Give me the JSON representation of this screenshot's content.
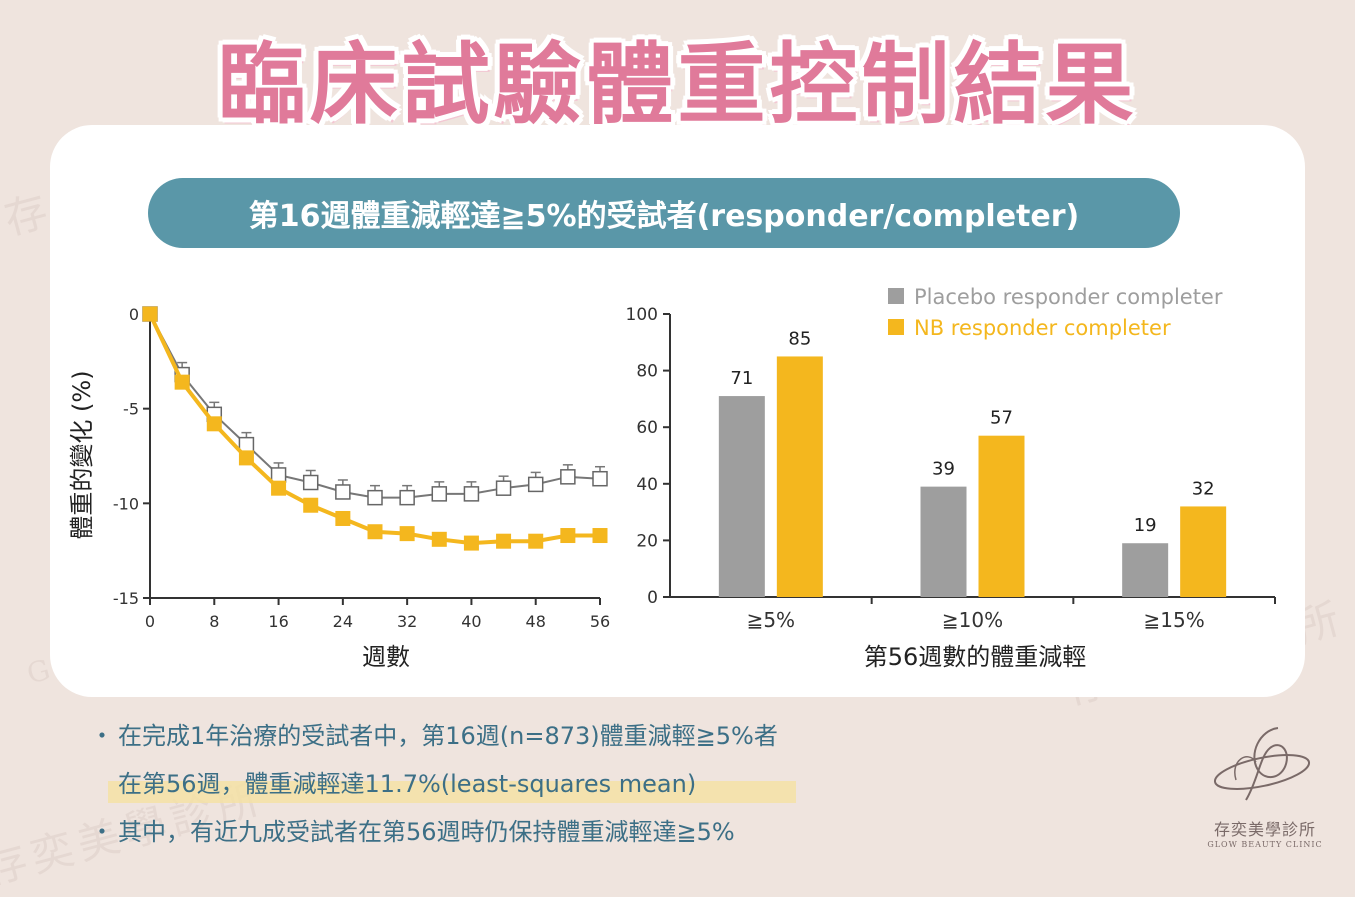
{
  "title": "臨床試驗體重控制結果",
  "subtitle": "第16週體重減輕達≧5%的受試者(responder/completer)",
  "colors": {
    "placebo": "#9e9e9e",
    "nb": "#f4b71e",
    "pill": "#5a97a8",
    "title": "#e07a9a",
    "bullet_text": "#3c6f86"
  },
  "chart_data": [
    {
      "type": "line",
      "ylabel": "體重的變化 (%)",
      "xlabel": "週數",
      "x_ticks": [
        0,
        8,
        16,
        24,
        32,
        40,
        48,
        56
      ],
      "y_ticks": [
        0,
        -5,
        -10,
        -15
      ],
      "xlim": [
        0,
        56
      ],
      "ylim": [
        -15,
        0
      ],
      "x": [
        0,
        4,
        8,
        12,
        16,
        20,
        24,
        28,
        32,
        36,
        40,
        44,
        48,
        52,
        56
      ],
      "series": [
        {
          "key": "placebo",
          "marker": "open-square",
          "values": [
            0,
            -3.2,
            -5.3,
            -6.9,
            -8.5,
            -8.9,
            -9.4,
            -9.7,
            -9.7,
            -9.5,
            -9.5,
            -9.2,
            -9.0,
            -8.6,
            -8.7
          ]
        },
        {
          "key": "nb",
          "marker": "filled-square",
          "values": [
            0,
            -3.6,
            -5.8,
            -7.6,
            -9.2,
            -10.1,
            -10.8,
            -11.5,
            -11.6,
            -11.9,
            -12.1,
            -12.0,
            -12.0,
            -11.7,
            -11.7
          ]
        }
      ]
    },
    {
      "type": "bar",
      "xlabel": "第56週數的體重減輕",
      "categories": [
        "≧5%",
        "≧10%",
        "≧15%"
      ],
      "y_ticks": [
        0,
        20,
        40,
        60,
        80,
        100
      ],
      "ylim": [
        0,
        100
      ],
      "legend_position": "top-right",
      "series": [
        {
          "name": "Placebo responder completer",
          "key": "placebo",
          "values": [
            71,
            39,
            19
          ]
        },
        {
          "name": "NB responder completer",
          "key": "nb",
          "values": [
            85,
            57,
            32
          ]
        }
      ]
    }
  ],
  "bullets": [
    {
      "dot": "・",
      "text": "在完成1年治療的受試者中，第16週(n=873)體重減輕≧5%者"
    },
    {
      "dot": "",
      "text": "在第56週，體重減輕達11.7%(least-squares mean)"
    },
    {
      "dot": "・",
      "text": "其中，有近九成受試者在第56週時仍保持體重減輕達≧5%"
    }
  ],
  "logo": {
    "name_cn": "存奕美學診所",
    "name_en": "GLOW BEAUTY CLINIC",
    "icon": "clinic-logo-icon"
  },
  "watermark": {
    "text_cn": "存奕美學診所",
    "text_en": "GLOW BEAUTY CLINIC"
  }
}
